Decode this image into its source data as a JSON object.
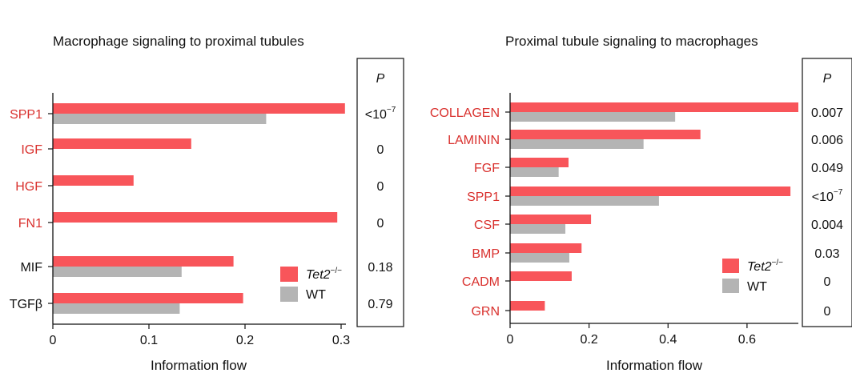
{
  "colors": {
    "tet2": "#f8555a",
    "wt": "#b4b4b4",
    "highlight_label": "#d9302d",
    "plain_label": "#111111"
  },
  "chart_data": [
    {
      "type": "bar",
      "orientation": "horizontal",
      "title": "Macrophage signaling to proximal tubules",
      "xlabel": "Information flow",
      "xlim": [
        0,
        0.305
      ],
      "xticks": [
        "0",
        "0.1",
        "0.2",
        "0.3"
      ],
      "xtick_values": [
        0,
        0.1,
        0.2,
        0.3
      ],
      "categories": [
        "SPP1",
        "IGF",
        "HGF",
        "FN1",
        "MIF",
        "TGFβ"
      ],
      "highlighted": [
        true,
        true,
        true,
        true,
        false,
        false
      ],
      "series": [
        {
          "name": "Tet2",
          "superscript": "−/−",
          "values": [
            0.304,
            0.144,
            0.084,
            0.296,
            0.188,
            0.198
          ]
        },
        {
          "name": "WT",
          "values": [
            0.222,
            0,
            0,
            0,
            0.134,
            0.132
          ]
        }
      ],
      "p_header": "P",
      "p_values": [
        {
          "text": "<10",
          "sup": "−7"
        },
        {
          "text": "0"
        },
        {
          "text": "0"
        },
        {
          "text": "0"
        },
        {
          "text": "0.18"
        },
        {
          "text": "0.79"
        }
      ],
      "legend": [
        {
          "label": "Tet2",
          "superscript": "−/−"
        },
        {
          "label": "WT"
        }
      ]
    },
    {
      "type": "bar",
      "orientation": "horizontal",
      "title": "Proximal tubule signaling to macrophages",
      "xlabel": "Information flow",
      "xlim": [
        0,
        0.73
      ],
      "xticks": [
        "0",
        "0.2",
        "0.4",
        "0.6"
      ],
      "xtick_values": [
        0,
        0.2,
        0.4,
        0.6
      ],
      "categories": [
        "COLLAGEN",
        "LAMININ",
        "FGF",
        "SPP1",
        "CSF",
        "BMP",
        "CADM",
        "GRN"
      ],
      "highlighted": [
        true,
        true,
        true,
        true,
        true,
        true,
        true,
        true
      ],
      "series": [
        {
          "name": "Tet2",
          "superscript": "−/−",
          "values": [
            0.73,
            0.482,
            0.148,
            0.71,
            0.205,
            0.181,
            0.156,
            0.088
          ]
        },
        {
          "name": "WT",
          "values": [
            0.418,
            0.338,
            0.123,
            0.377,
            0.14,
            0.15,
            0,
            0
          ]
        }
      ],
      "p_header": "P",
      "p_values": [
        {
          "text": "0.007"
        },
        {
          "text": "0.006"
        },
        {
          "text": "0.049"
        },
        {
          "text": "<10",
          "sup": "−7"
        },
        {
          "text": "0.004"
        },
        {
          "text": "0.03"
        },
        {
          "text": "0"
        },
        {
          "text": "0"
        }
      ],
      "legend": [
        {
          "label": "Tet2",
          "superscript": "−/−"
        },
        {
          "label": "WT"
        }
      ]
    }
  ]
}
